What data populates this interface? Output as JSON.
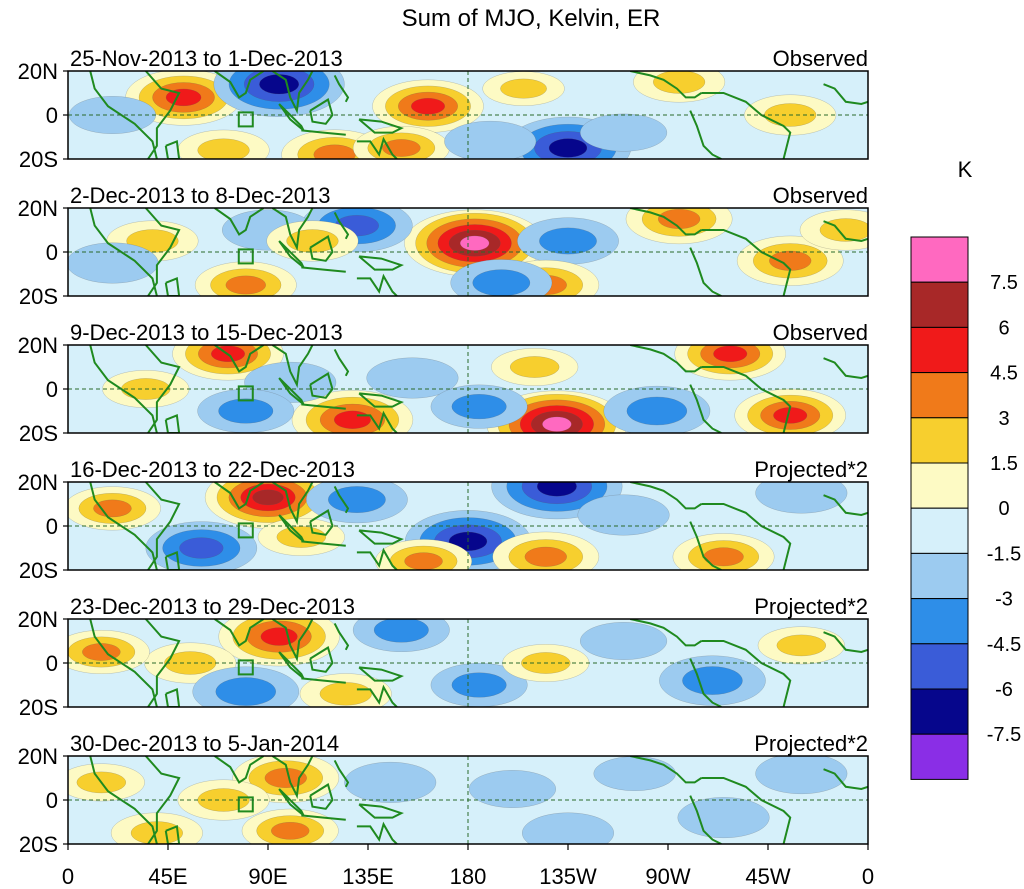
{
  "chart_data": {
    "type": "heatmap",
    "title": "Sum of MJO, Kelvin, ER",
    "colorbar_unit": "K",
    "colorbar_levels": [
      "7.5",
      "6",
      "4.5",
      "3",
      "1.5",
      "0",
      "-1.5",
      "-3",
      "-4.5",
      "-6",
      "-7.5"
    ],
    "colorbar_colors": [
      "#ff69c0",
      "#a82828",
      "#f01a1a",
      "#f07a1a",
      "#f7cf2e",
      "#fdfac4",
      "#d6f0fa",
      "#9ccbf0",
      "#2e8ee8",
      "#3a5cd8",
      "#06068c",
      "#8a2ee6"
    ],
    "lon_ticks": [
      "0",
      "45E",
      "90E",
      "135E",
      "180",
      "135W",
      "90W",
      "45W",
      "0"
    ],
    "lat_ticks": [
      "20N",
      "0",
      "20S"
    ],
    "xrange_deg_east": [
      0,
      360
    ],
    "yrange_deg": [
      -20,
      20
    ],
    "panels": [
      {
        "period": "25-Nov-2013 to 1-Dec-2013",
        "type": "Observed",
        "anomalies": [
          {
            "lon": 52,
            "lat": 8,
            "v": 5.5
          },
          {
            "lon": 95,
            "lat": 14,
            "v": -7
          },
          {
            "lon": 162,
            "lat": 4,
            "v": 5
          },
          {
            "lon": 225,
            "lat": -15,
            "v": -6.5
          },
          {
            "lon": 120,
            "lat": -18,
            "v": 4.5
          },
          {
            "lon": 150,
            "lat": -15,
            "v": 3.5
          },
          {
            "lon": 325,
            "lat": 0,
            "v": 3
          },
          {
            "lon": 275,
            "lat": 15,
            "v": 3
          },
          {
            "lon": 20,
            "lat": 0,
            "v": -2.5
          },
          {
            "lon": 190,
            "lat": -12,
            "v": -3
          },
          {
            "lon": 70,
            "lat": -16,
            "v": 3
          },
          {
            "lon": 250,
            "lat": -8,
            "v": -2.5
          },
          {
            "lon": 205,
            "lat": 12,
            "v": 2
          }
        ]
      },
      {
        "period": "2-Dec-2013 to 8-Dec-2013",
        "type": "Observed",
        "anomalies": [
          {
            "lon": 183,
            "lat": 4,
            "v": 8
          },
          {
            "lon": 130,
            "lat": 12,
            "v": -5
          },
          {
            "lon": 225,
            "lat": 5,
            "v": -4
          },
          {
            "lon": 275,
            "lat": 15,
            "v": 4.5
          },
          {
            "lon": 325,
            "lat": -4,
            "v": 4.5
          },
          {
            "lon": 80,
            "lat": -15,
            "v": 4
          },
          {
            "lon": 215,
            "lat": -15,
            "v": 4.5
          },
          {
            "lon": 195,
            "lat": -14,
            "v": -4
          },
          {
            "lon": 90,
            "lat": 10,
            "v": -3
          },
          {
            "lon": 38,
            "lat": 5,
            "v": 3
          },
          {
            "lon": 350,
            "lat": 10,
            "v": 3
          },
          {
            "lon": 20,
            "lat": -5,
            "v": -3
          },
          {
            "lon": 110,
            "lat": 5,
            "v": 3
          }
        ]
      },
      {
        "period": "9-Dec-2013 to 15-Dec-2013",
        "type": "Observed",
        "anomalies": [
          {
            "lon": 72,
            "lat": 16,
            "v": 5
          },
          {
            "lon": 128,
            "lat": -14,
            "v": 6
          },
          {
            "lon": 220,
            "lat": -16,
            "v": 8
          },
          {
            "lon": 298,
            "lat": 16,
            "v": 5
          },
          {
            "lon": 325,
            "lat": -12,
            "v": 5
          },
          {
            "lon": 100,
            "lat": 3,
            "v": -3
          },
          {
            "lon": 155,
            "lat": 5,
            "v": -3
          },
          {
            "lon": 185,
            "lat": -8,
            "v": -3.5
          },
          {
            "lon": 265,
            "lat": -10,
            "v": -4.5
          },
          {
            "lon": 80,
            "lat": -10,
            "v": -3.5
          },
          {
            "lon": 210,
            "lat": 10,
            "v": 2.5
          },
          {
            "lon": 35,
            "lat": 0,
            "v": 2.5
          }
        ]
      },
      {
        "period": "16-Dec-2013 to 22-Dec-2013",
        "type": "Projected*2",
        "anomalies": [
          {
            "lon": 90,
            "lat": 13,
            "v": 6.5
          },
          {
            "lon": 220,
            "lat": 18,
            "v": -7
          },
          {
            "lon": 180,
            "lat": -7,
            "v": -6.5
          },
          {
            "lon": 60,
            "lat": -10,
            "v": -5
          },
          {
            "lon": 130,
            "lat": 12,
            "v": -4
          },
          {
            "lon": 215,
            "lat": -14,
            "v": 4.5
          },
          {
            "lon": 295,
            "lat": -14,
            "v": 4
          },
          {
            "lon": 20,
            "lat": 8,
            "v": 3.5
          },
          {
            "lon": 250,
            "lat": 5,
            "v": -3
          },
          {
            "lon": 330,
            "lat": 15,
            "v": -3
          },
          {
            "lon": 160,
            "lat": -16,
            "v": 3.5
          },
          {
            "lon": 105,
            "lat": -5,
            "v": 2.5
          }
        ]
      },
      {
        "period": "23-Dec-2013 to 29-Dec-2013",
        "type": "Projected*2",
        "anomalies": [
          {
            "lon": 95,
            "lat": 12,
            "v": 6
          },
          {
            "lon": 55,
            "lat": 0,
            "v": 3
          },
          {
            "lon": 80,
            "lat": -13,
            "v": -4.5
          },
          {
            "lon": 150,
            "lat": 15,
            "v": -3.5
          },
          {
            "lon": 185,
            "lat": -10,
            "v": -3.5
          },
          {
            "lon": 290,
            "lat": -8,
            "v": -4.5
          },
          {
            "lon": 215,
            "lat": 0,
            "v": 2.5
          },
          {
            "lon": 125,
            "lat": -14,
            "v": 3
          },
          {
            "lon": 330,
            "lat": 8,
            "v": 2.5
          },
          {
            "lon": 15,
            "lat": 5,
            "v": 3.5
          },
          {
            "lon": 250,
            "lat": 10,
            "v": -2.5
          }
        ]
      },
      {
        "period": "30-Dec-2013 to 5-Jan-2014",
        "type": "Projected*2",
        "anomalies": [
          {
            "lon": 98,
            "lat": 10,
            "v": 4.5
          },
          {
            "lon": 70,
            "lat": 0,
            "v": 3
          },
          {
            "lon": 100,
            "lat": -14,
            "v": 3.5
          },
          {
            "lon": 40,
            "lat": -15,
            "v": 3
          },
          {
            "lon": 145,
            "lat": 8,
            "v": -3
          },
          {
            "lon": 200,
            "lat": 5,
            "v": -2.5
          },
          {
            "lon": 225,
            "lat": -15,
            "v": -3
          },
          {
            "lon": 295,
            "lat": -8,
            "v": -3
          },
          {
            "lon": 330,
            "lat": 12,
            "v": -3
          },
          {
            "lon": 15,
            "lat": 8,
            "v": 2.5
          },
          {
            "lon": 255,
            "lat": 12,
            "v": -2
          }
        ]
      }
    ]
  }
}
